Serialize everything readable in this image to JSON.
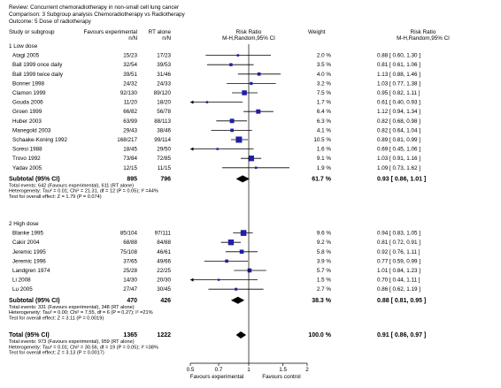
{
  "header": {
    "review": "Review:   Concurrent chemoradiotherapy in non-small cell lung cancer",
    "comparison": "Comparison:   3 Subgroup analysis Chemoradiotherapy vs Radiotherapy",
    "outcome": "Outcome:   5 Dose of radiotherapy"
  },
  "columns": {
    "study": "Study or subgroup",
    "exp": [
      "Favours experimental",
      "n/N"
    ],
    "ctrl": [
      "RT alone",
      "n/N"
    ],
    "rr_plot": [
      "Risk Ratio",
      "M-H,Random,95% CI"
    ],
    "weight": "Weight",
    "rr_text": [
      "Risk Ratio",
      "M-H,Random,95% CI"
    ]
  },
  "axis": {
    "ticks": [
      "0.5",
      "0.7",
      "1",
      "1.5",
      "2"
    ],
    "label_left": "Favours experimental",
    "label_right": "Favours control"
  },
  "chart_data": {
    "type": "forest",
    "scale": "log",
    "xlim": [
      0.5,
      2
    ],
    "groups": [
      {
        "label": "1 Low dose",
        "studies": [
          {
            "name": "Atagi 2005",
            "exp": "15/23",
            "ctrl": "17/23",
            "weight": "2.0 %",
            "rr": 0.88,
            "lo": 0.6,
            "hi": 1.3,
            "ci": "0.88 [ 0.60, 1.30 ]"
          },
          {
            "name": "Ball 1999 once daily",
            "exp": "32/54",
            "ctrl": "39/53",
            "weight": "3.5 %",
            "rr": 0.81,
            "lo": 0.61,
            "hi": 1.06,
            "ci": "0.81 [ 0.61, 1.06 ]"
          },
          {
            "name": "Ball 1999 twice daily",
            "exp": "39/51",
            "ctrl": "31/46",
            "weight": "4.0 %",
            "rr": 1.13,
            "lo": 0.88,
            "hi": 1.46,
            "ci": "1.13 [ 0.88, 1.46 ]"
          },
          {
            "name": "Bonner 1998",
            "exp": "24/32",
            "ctrl": "24/33",
            "weight": "3.2 %",
            "rr": 1.03,
            "lo": 0.77,
            "hi": 1.38,
            "ci": "1.03 [ 0.77, 1.38 ]"
          },
          {
            "name": "Clamon 1999",
            "exp": "92/130",
            "ctrl": "89/120",
            "weight": "7.5 %",
            "rr": 0.95,
            "lo": 0.82,
            "hi": 1.11,
            "ci": "0.95 [ 0.82, 1.11 ]"
          },
          {
            "name": "Gouda 2006",
            "exp": "11/20",
            "ctrl": "18/20",
            "weight": "1.7 %",
            "rr": 0.61,
            "lo": 0.4,
            "hi": 0.93,
            "ci": "0.61 [ 0.40, 0.93 ]"
          },
          {
            "name": "Groen 1999",
            "exp": "66/82",
            "ctrl": "56/78",
            "weight": "6.4 %",
            "rr": 1.12,
            "lo": 0.94,
            "hi": 1.34,
            "ci": "1.12 [ 0.94, 1.34 ]"
          },
          {
            "name": "Huber 2003",
            "exp": "63/99",
            "ctrl": "88/113",
            "weight": "6.3 %",
            "rr": 0.82,
            "lo": 0.68,
            "hi": 0.98,
            "ci": "0.82 [ 0.68, 0.98 ]"
          },
          {
            "name": "Manegold 2003",
            "exp": "29/43",
            "ctrl": "38/46",
            "weight": "4.1 %",
            "rr": 0.82,
            "lo": 0.64,
            "hi": 1.04,
            "ci": "0.82 [ 0.64, 1.04 ]"
          },
          {
            "name": "Schaake-Koning 1992",
            "exp": "168/217",
            "ctrl": "99/114",
            "weight": "10.5 %",
            "rr": 0.89,
            "lo": 0.81,
            "hi": 0.99,
            "ci": "0.89 [ 0.81, 0.99 ]"
          },
          {
            "name": "Soresi 1988",
            "exp": "18/45",
            "ctrl": "29/50",
            "weight": "1.6 %",
            "rr": 0.69,
            "lo": 0.45,
            "hi": 1.06,
            "ci": "0.69 [ 0.45, 1.06 ]"
          },
          {
            "name": "Trovo 1992",
            "exp": "73/84",
            "ctrl": "72/85",
            "weight": "9.1 %",
            "rr": 1.03,
            "lo": 0.91,
            "hi": 1.16,
            "ci": "1.03 [ 0.91, 1.16 ]"
          },
          {
            "name": "Yadav 2005",
            "exp": "12/15",
            "ctrl": "11/15",
            "weight": "1.9 %",
            "rr": 1.09,
            "lo": 0.73,
            "hi": 1.62,
            "ci": "1.09 [ 0.73, 1.62 ]"
          }
        ],
        "subtotal": {
          "label": "Subtotal (95% CI)",
          "exp": "895",
          "ctrl": "796",
          "weight": "61.7 %",
          "rr": 0.93,
          "lo": 0.86,
          "hi": 1.01,
          "ci": "0.93 [ 0.86, 1.01 ]",
          "notes": [
            "Total events: 642 (Favours experimental), 611 (RT alone)",
            "Heterogeneity: Tau² = 0.01; Chi² = 21.31, df = 12 (P = 0.05); I² =44%",
            "Test for overall effect: Z = 1.79 (P = 0.074)"
          ]
        }
      },
      {
        "label": "2 High dose",
        "studies": [
          {
            "name": "Blanke 1995",
            "exp": "85/104",
            "ctrl": "97/111",
            "weight": "9.6 %",
            "rr": 0.94,
            "lo": 0.83,
            "hi": 1.05,
            "ci": "0.94 [ 0.83, 1.05 ]"
          },
          {
            "name": "Cakir 2004",
            "exp": "68/88",
            "ctrl": "84/88",
            "weight": "9.2 %",
            "rr": 0.81,
            "lo": 0.72,
            "hi": 0.91,
            "ci": "0.81 [ 0.72, 0.91 ]"
          },
          {
            "name": "Jeremic 1995",
            "exp": "75/108",
            "ctrl": "46/61",
            "weight": "5.8 %",
            "rr": 0.92,
            "lo": 0.76,
            "hi": 1.11,
            "ci": "0.92 [ 0.76, 1.11 ]"
          },
          {
            "name": "Jeremic 1996",
            "exp": "37/65",
            "ctrl": "49/66",
            "weight": "3.9 %",
            "rr": 0.77,
            "lo": 0.59,
            "hi": 0.99,
            "ci": "0.77 [ 0.59, 0.99 ]"
          },
          {
            "name": "Landgren 1974",
            "exp": "25/28",
            "ctrl": "22/25",
            "weight": "5.7 %",
            "rr": 1.01,
            "lo": 0.84,
            "hi": 1.23,
            "ci": "1.01 [ 0.84, 1.23 ]"
          },
          {
            "name": "Li 2008",
            "exp": "14/30",
            "ctrl": "20/30",
            "weight": "1.5 %",
            "rr": 0.7,
            "lo": 0.44,
            "hi": 1.11,
            "ci": "0.70 [ 0.44, 1.11 ]"
          },
          {
            "name": "Lu 2005",
            "exp": "27/47",
            "ctrl": "30/45",
            "weight": "2.7 %",
            "rr": 0.86,
            "lo": 0.62,
            "hi": 1.19,
            "ci": "0.86 [ 0.62, 1.19 ]"
          }
        ],
        "subtotal": {
          "label": "Subtotal (95% CI)",
          "exp": "470",
          "ctrl": "426",
          "weight": "38.3 %",
          "rr": 0.88,
          "lo": 0.81,
          "hi": 0.95,
          "ci": "0.88 [ 0.81, 0.95 ]",
          "notes": [
            "Total events: 331 (Favours experimental), 348 (RT alone)",
            "Heterogeneity: Tau² = 0.00; Chi² = 7.55, df = 6 (P = 0.27); I² =21%",
            "Test for overall effect: Z = 3.11 (P = 0.0019)"
          ]
        }
      }
    ],
    "total": {
      "label": "Total (95% CI)",
      "exp": "1365",
      "ctrl": "1222",
      "weight": "100.0 %",
      "rr": 0.91,
      "lo": 0.86,
      "hi": 0.97,
      "ci": "0.91 [ 0.86, 0.97 ]",
      "notes": [
        "Total events: 973 (Favours experimental), 959 (RT alone)",
        "Heterogeneity: Tau² = 0.01; Chi² = 30.56, df = 19 (P = 0.05); I² =38%",
        "Test for overall effect: Z = 3.13 (P = 0.0017)"
      ]
    },
    "colors": {
      "marker": "#1f1fa8",
      "diamond": "#000000",
      "line": "#000000"
    }
  }
}
